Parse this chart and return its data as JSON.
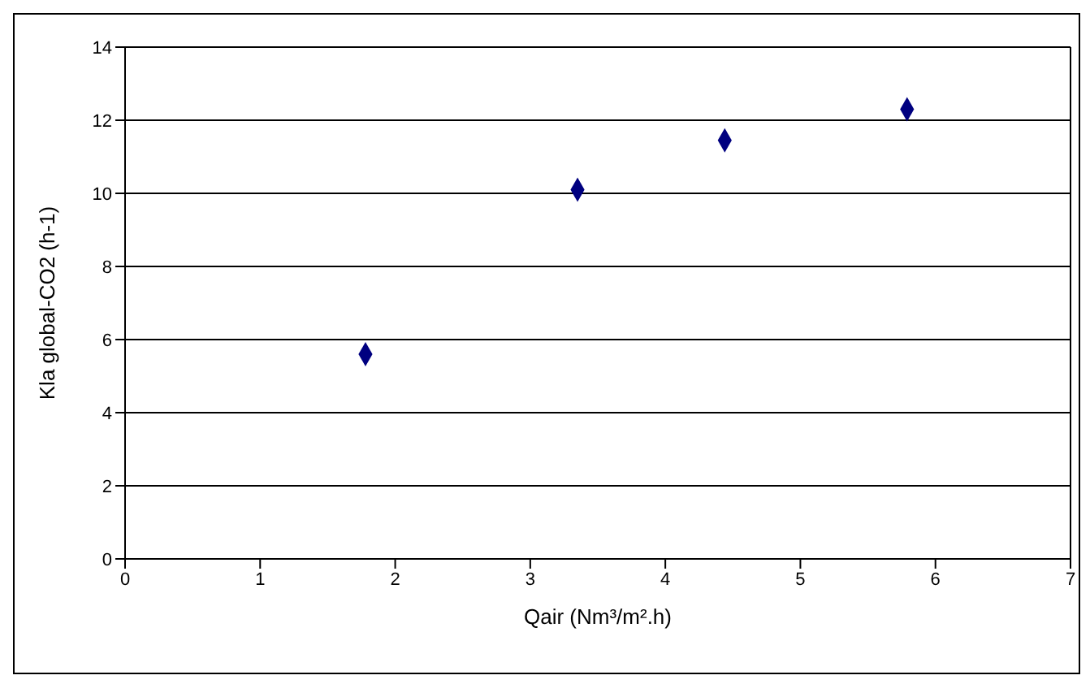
{
  "chart_data": {
    "type": "scatter",
    "xlabel": "Qair (Nm³/m².h)",
    "ylabel": "Kla global-CO2 (h-1)",
    "x": [
      1.78,
      3.35,
      4.44,
      5.79
    ],
    "series": [
      {
        "color": "#000080",
        "values": [
          5.6,
          10.1,
          11.45,
          12.3
        ]
      }
    ],
    "xlim": [
      0,
      7
    ],
    "xticks": [
      0,
      1,
      2,
      3,
      4,
      5,
      6,
      7
    ],
    "ylim": [
      0,
      14
    ],
    "yticks": [
      0,
      2,
      4,
      6,
      8,
      10,
      12,
      14
    ],
    "grid": "y",
    "marker": "diamond",
    "legend": false
  }
}
